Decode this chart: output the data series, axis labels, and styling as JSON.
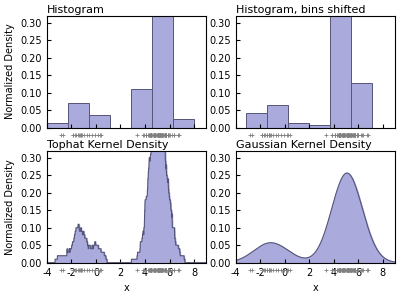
{
  "panel_titles": [
    "Histogram",
    "Histogram, bins shifted",
    "Tophat Kernel Density",
    "Gaussian Kernel Density"
  ],
  "bar_color": "#aaaadd",
  "bar_edgecolor": "#555577",
  "ylabel": "Normalized Density",
  "xlabel": "x",
  "xlim": [
    -4,
    9
  ],
  "yticks": [
    0.0,
    0.05,
    0.1,
    0.15,
    0.2,
    0.25,
    0.3
  ],
  "xticks": [
    -4,
    -2,
    0,
    2,
    4,
    6,
    8
  ],
  "figsize": [
    4.0,
    2.98
  ],
  "dpi": 100,
  "tophat_bandwidth": 0.5,
  "gaussian_bandwidth": 1.06,
  "n_bins_hist1": 7,
  "n_bins_hist2": 7
}
